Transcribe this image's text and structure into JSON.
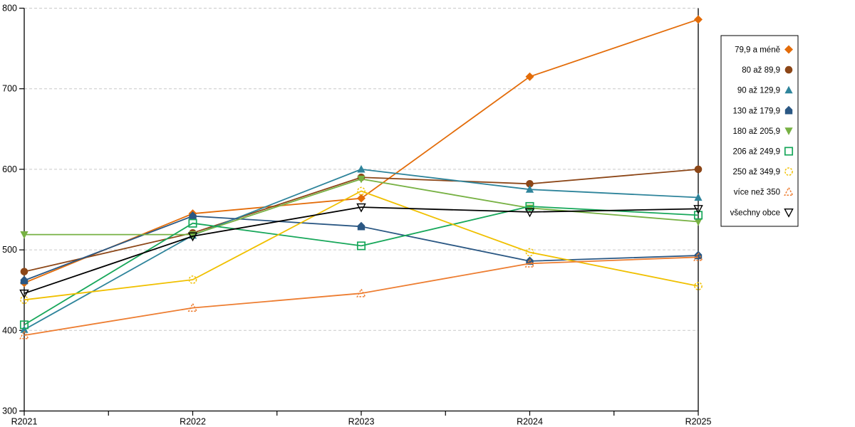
{
  "chart_data": {
    "type": "line",
    "title": "",
    "xlabel": "",
    "ylabel": "",
    "x_categories": [
      "R2021",
      "R2022",
      "R2023",
      "R2024",
      "R2025"
    ],
    "ylim": [
      300,
      800
    ],
    "yticks": [
      300,
      400,
      500,
      600,
      700,
      800
    ],
    "grid": "horizontal-dashed",
    "legend_position": "right",
    "gridline_color": "#c9c9c9",
    "axis_color": "#000000",
    "series": [
      {
        "name": "79,9 a méně",
        "color": "#E36C09",
        "marker": "diamond",
        "values": [
          459,
          545,
          564,
          715,
          786
        ]
      },
      {
        "name": "80 až 89,9",
        "color": "#8C4617",
        "marker": "circle",
        "values": [
          473,
          521,
          590,
          582,
          600
        ]
      },
      {
        "name": "90 až 129,9",
        "color": "#2E849B",
        "marker": "triangle-up",
        "values": [
          401,
          518,
          600,
          575,
          565
        ]
      },
      {
        "name": "130 až 179,9",
        "color": "#2A5783",
        "marker": "pentagon",
        "values": [
          462,
          542,
          529,
          486,
          493
        ]
      },
      {
        "name": "180 až 205,9",
        "color": "#77B143",
        "marker": "triangle-down",
        "values": [
          519,
          519,
          588,
          552,
          535
        ]
      },
      {
        "name": "206 až 249,9",
        "color": "#17A75A",
        "marker": "square-open",
        "values": [
          407,
          533,
          505,
          554,
          543
        ]
      },
      {
        "name": "250 až 349,9",
        "color": "#F0C000",
        "marker": "circle-open-dashed",
        "values": [
          438,
          463,
          573,
          497,
          455
        ]
      },
      {
        "name": "více než 350",
        "color": "#ED7D31",
        "marker": "triangle-up-open-dashed",
        "values": [
          394,
          428,
          446,
          483,
          491
        ]
      },
      {
        "name": "všechny obce",
        "color": "#000000",
        "marker": "triangle-down-open",
        "values": [
          446,
          517,
          553,
          547,
          551
        ]
      }
    ]
  }
}
